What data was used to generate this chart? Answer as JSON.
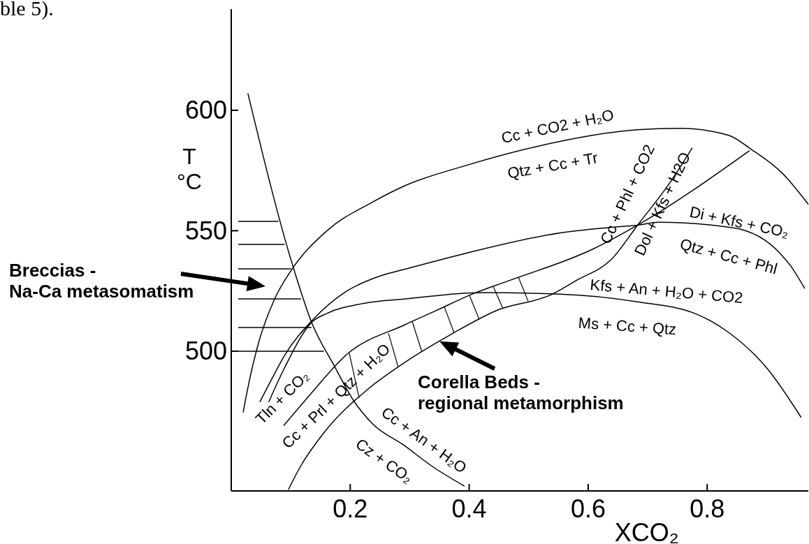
{
  "chart_data": {
    "type": "line",
    "xlabel": "XCO₂",
    "ylabel": "T\n°C",
    "xlim": [
      0,
      0.97
    ],
    "ylim": [
      442,
      642
    ],
    "xticks": [
      0.2,
      0.4,
      0.6,
      0.8
    ],
    "yticks": [
      500,
      550,
      600
    ],
    "series": [
      {
        "color": "#000000",
        "x": [
          0.028,
          0.104,
          0.135,
          0.173,
          0.207,
          0.237,
          0.29,
          0.339,
          0.392
        ],
        "values": [
          607,
          535,
          512,
          494,
          479,
          470,
          461,
          452,
          444
        ]
      },
      {
        "color": "#000000",
        "x": [
          0.02,
          0.031,
          0.046,
          0.073,
          0.099,
          0.161,
          0.237,
          0.293,
          0.392,
          0.514,
          0.683,
          0.754,
          0.836,
          0.874,
          0.927,
          0.97
        ],
        "values": [
          474.6,
          488.4,
          503.5,
          521.7,
          532.9,
          550,
          561.8,
          568.8,
          576.9,
          585,
          591.9,
          592.5,
          589.6,
          583.8,
          573.7,
          561
        ]
      },
      {
        "color": "#000000",
        "x": [
          0.048,
          0.068,
          0.089,
          0.137,
          0.194,
          0.25,
          0.293,
          0.392,
          0.553,
          0.653,
          0.683,
          0.718,
          0.844,
          0.923,
          0.94,
          0.964
        ],
        "values": [
          478.9,
          488.4,
          498,
          513,
          524.9,
          531.2,
          534.1,
          540.5,
          549.1,
          551.7,
          552.3,
          553.5,
          551.2,
          540.5,
          535.5,
          526
        ]
      },
      {
        "color": "#000000",
        "x": [
          0.063,
          0.089,
          0.137,
          0.16,
          0.224,
          0.293,
          0.423,
          0.553,
          0.683,
          0.783,
          0.836,
          0.901,
          0.958
        ],
        "values": [
          478.9,
          492.8,
          512.4,
          515.6,
          519.9,
          521.7,
          524.3,
          523.7,
          520.5,
          515.3,
          507.8,
          492.8,
          472.5
        ]
      },
      {
        "color": "#000000",
        "x": [
          0.088,
          0.133,
          0.194,
          0.292,
          0.344,
          0.405,
          0.466,
          0.609,
          0.683,
          0.871
        ],
        "values": [
          469.1,
          482.1,
          498.6,
          511,
          516.8,
          523.7,
          529.2,
          542.5,
          552.3,
          583.2
        ]
      },
      {
        "color": "#000000",
        "x": [
          0.096,
          0.116,
          0.155,
          0.229,
          0.292,
          0.371,
          0.445,
          0.54,
          0.579,
          0.64,
          0.683,
          0.739,
          0.775
        ],
        "values": [
          442.5,
          452,
          465.9,
          484.1,
          495.4,
          507.2,
          516.8,
          523.7,
          529.2,
          538.4,
          552.3,
          570.5,
          584.4
        ]
      }
    ],
    "annotations": [
      "Cc + CO2 + H₂O",
      "Qtz + Cc + Tr",
      "Cc + Phl + CO2",
      "Dol + Kfs + H2O",
      "Di + Kfs + CO₂",
      "Qtz + Cc + Phl",
      "Kfs + An + H₂O + CO2",
      "Ms + Cc + Qtz",
      "Tln + CO₂",
      "Cc + Prl + Qtz + H₂O",
      "Cc + An + H₂O",
      "Cz + CO₂",
      "ble 5).",
      "Breccias -\nNa-Ca metasomatism",
      {
        "text": "Corella Beds  -\nregional metamorphism",
        "x": 0.35,
        "y": 504.1
      }
    ]
  }
}
